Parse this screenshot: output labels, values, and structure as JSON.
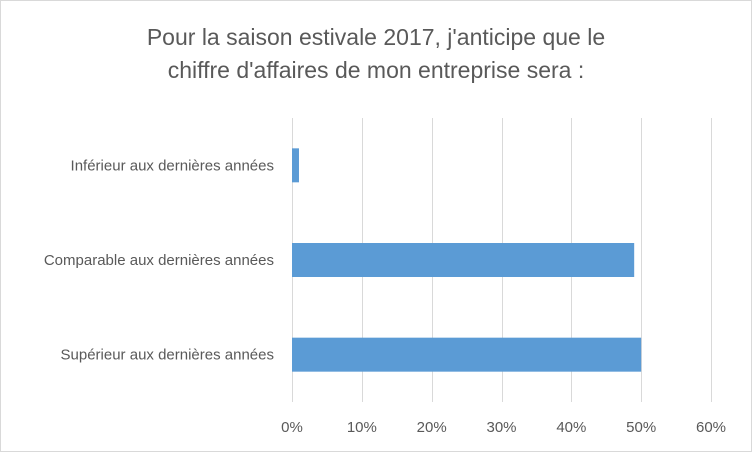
{
  "chart_data": {
    "type": "bar",
    "orientation": "horizontal",
    "title_lines": [
      "Pour la saison estivale 2017, j'anticipe que le",
      "chiffre d'affaires de mon entreprise sera :"
    ],
    "categories": [
      "Inférieur aux dernières années",
      "Comparable aux dernières années",
      "Supérieur aux dernières années"
    ],
    "values": [
      1,
      49,
      50
    ],
    "x_ticks": [
      "0%",
      "10%",
      "20%",
      "30%",
      "40%",
      "50%",
      "60%"
    ],
    "xlim": [
      0,
      60
    ],
    "xlabel": "",
    "ylabel": "",
    "grid": true,
    "colors": {
      "bar": "#5b9bd5",
      "grid": "#d9d9d9",
      "text": "#595959"
    }
  }
}
